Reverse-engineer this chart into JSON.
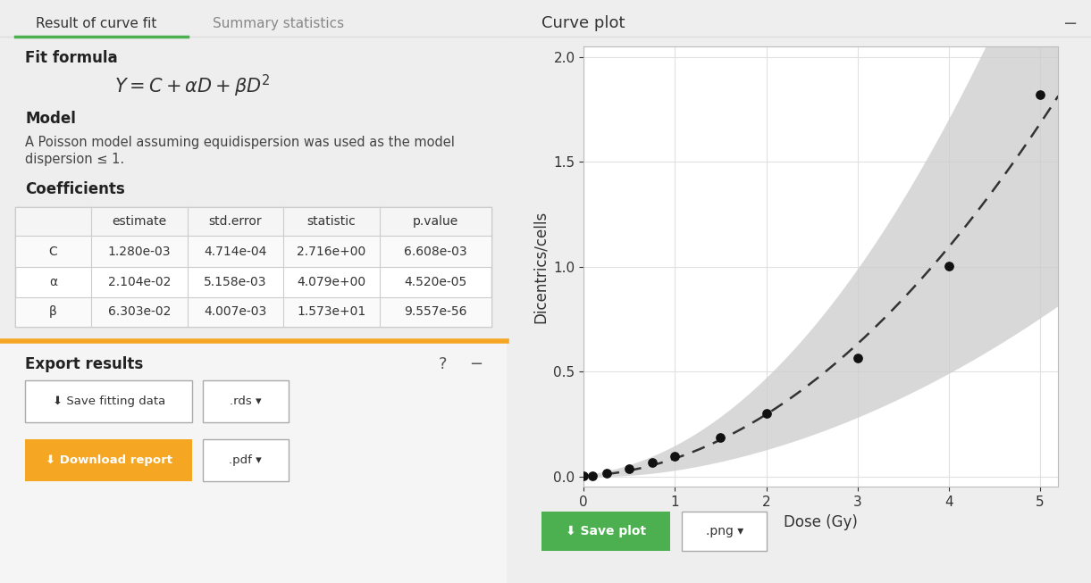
{
  "C": 0.00128,
  "alpha": 0.02104,
  "beta": 0.06303,
  "C_se": 0.0004714,
  "alpha_se": 0.005158,
  "beta_se": 0.004007,
  "data_x": [
    0,
    0.1,
    0.25,
    0.5,
    0.75,
    1.0,
    1.5,
    2.0,
    3.0,
    4.0,
    5.0
  ],
  "data_y": [
    0.001,
    0.002,
    0.013,
    0.038,
    0.065,
    0.095,
    0.185,
    0.3,
    0.565,
    1.005,
    1.82
  ],
  "xlim": [
    0,
    5.2
  ],
  "ylim": [
    -0.05,
    2.05
  ],
  "xlabel": "Dose (Gy)",
  "ylabel": "Dicentrics/cells",
  "plot_title": "Curve plot",
  "tab1": "Result of curve fit",
  "tab2": "Summary statistics",
  "fit_formula_label": "Fit formula",
  "model_label": "Model",
  "model_text1": "A Poisson model assuming equidispersion was used as the model",
  "model_text2": "dispersion ≤ 1.",
  "coefficients_label": "Coefficients",
  "export_label": "Export results",
  "green_color": "#4CAF50",
  "orange_color": "#F5A623",
  "panel_bg": "#ffffff",
  "grid_color": "#e0e0e0",
  "curve_color": "#333333",
  "ci_color": "#cccccc",
  "dot_color": "#111111",
  "header_border": "#dddddd",
  "col_bounds": [
    0.03,
    0.18,
    0.37,
    0.56,
    0.75,
    0.97
  ],
  "row_bounds": [
    0.645,
    0.595,
    0.542,
    0.49,
    0.44
  ],
  "table_headers": [
    "",
    "estimate",
    "std.error",
    "statistic",
    "p.value"
  ],
  "table_rows": [
    [
      "C",
      "1.280e-03",
      "4.714e-04",
      "2.716e+00",
      "6.608e-03"
    ],
    [
      "α",
      "2.104e-02",
      "5.158e-03",
      "4.079e+00",
      "4.520e-05"
    ],
    [
      "β",
      "6.303e-02",
      "4.007e-03",
      "1.573e+01",
      "9.557e-56"
    ]
  ],
  "ci_scale": 9.0,
  "xticks": [
    0,
    1,
    2,
    3,
    4,
    5
  ],
  "yticks": [
    0.0,
    0.5,
    1.0,
    1.5,
    2.0
  ]
}
